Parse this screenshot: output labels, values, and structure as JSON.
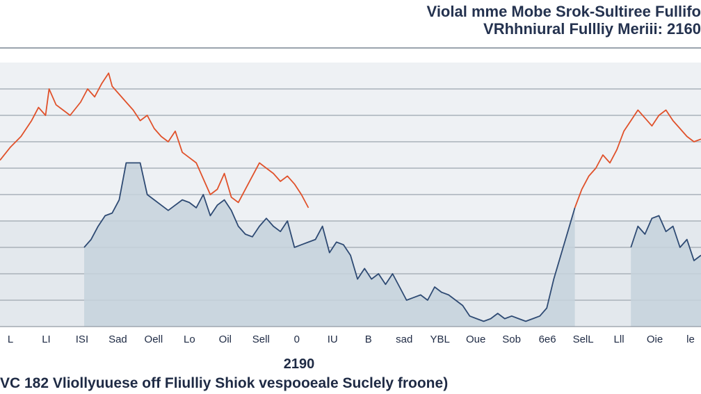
{
  "header": {
    "title": "Violal mme Mobe Srok-Sultiree Fullifo",
    "subtitle": "VRhhniural Fullliy Meriii: 2160"
  },
  "chart_data": {
    "type": "line",
    "title": "Violal mme Mobe Srok-Sultiree Fullifo",
    "subtitle": "VRhhniural Fullliy Meriii: 2160",
    "xlabel": "2190",
    "caption": "VC 182 Vliollyuuese off Fliulliy Shiok vespooeale Suclely froone)",
    "ylim": [
      0,
      100
    ],
    "grid": true,
    "legend": "none",
    "categories": [
      "L",
      "LI",
      "ISI",
      "Sad",
      "Oell",
      "Lo",
      "Oil",
      "Sell",
      "0",
      "IU",
      "B",
      "sad",
      "YBL",
      "Oue",
      "Sob",
      "6e6",
      "SelL",
      "Lll",
      "Oie",
      "le"
    ],
    "series": [
      {
        "color": "#e0512a",
        "segments": [
          [
            [
              0,
              63
            ],
            [
              1.5,
              68
            ],
            [
              3,
              72
            ],
            [
              4.5,
              78
            ],
            [
              5.5,
              83
            ],
            [
              6.5,
              80
            ],
            [
              7,
              90
            ],
            [
              8,
              84
            ],
            [
              9,
              82
            ],
            [
              10,
              80
            ],
            [
              11.5,
              85
            ],
            [
              12.5,
              90
            ],
            [
              13.5,
              87
            ],
            [
              14.5,
              92
            ],
            [
              15.5,
              96
            ],
            [
              16,
              91
            ],
            [
              17,
              88
            ],
            [
              18,
              85
            ],
            [
              19,
              82
            ],
            [
              20,
              78
            ],
            [
              21,
              80
            ],
            [
              22,
              75
            ],
            [
              23,
              72
            ],
            [
              24,
              70
            ],
            [
              25,
              74
            ],
            [
              26,
              66
            ],
            [
              27,
              64
            ],
            [
              28,
              62
            ],
            [
              29,
              56
            ],
            [
              30,
              50
            ],
            [
              31,
              52
            ],
            [
              32,
              58
            ],
            [
              33,
              49
            ],
            [
              34,
              47
            ],
            [
              35,
              52
            ],
            [
              36,
              57
            ],
            [
              37,
              62
            ],
            [
              38,
              60
            ],
            [
              39,
              58
            ],
            [
              40,
              55
            ],
            [
              41,
              57
            ],
            [
              42,
              54
            ],
            [
              43,
              50
            ],
            [
              44,
              45
            ]
          ],
          [
            [
              82,
              45
            ],
            [
              83,
              52
            ],
            [
              84,
              57
            ],
            [
              85,
              60
            ],
            [
              86,
              65
            ],
            [
              87,
              62
            ],
            [
              88,
              67
            ],
            [
              89,
              74
            ],
            [
              90,
              78
            ],
            [
              91,
              82
            ],
            [
              92,
              79
            ],
            [
              93,
              76
            ],
            [
              94,
              80
            ],
            [
              95,
              82
            ],
            [
              96,
              78
            ],
            [
              97,
              75
            ],
            [
              98,
              72
            ],
            [
              99,
              70
            ],
            [
              100,
              71
            ]
          ]
        ]
      },
      {
        "color": "#2e4a73",
        "fill": "#c6d2dc",
        "segments": [
          [
            [
              12,
              30
            ],
            [
              13,
              33
            ],
            [
              14,
              38
            ],
            [
              15,
              42
            ],
            [
              16,
              43
            ],
            [
              17,
              48
            ],
            [
              18,
              62
            ],
            [
              19,
              62
            ],
            [
              20,
              62
            ],
            [
              21,
              50
            ],
            [
              22,
              48
            ],
            [
              23,
              46
            ],
            [
              24,
              44
            ],
            [
              25,
              46
            ],
            [
              26,
              48
            ],
            [
              27,
              47
            ],
            [
              28,
              45
            ],
            [
              29,
              50
            ],
            [
              30,
              42
            ],
            [
              31,
              46
            ],
            [
              32,
              48
            ],
            [
              33,
              44
            ],
            [
              34,
              38
            ],
            [
              35,
              35
            ],
            [
              36,
              34
            ],
            [
              37,
              38
            ],
            [
              38,
              41
            ],
            [
              39,
              38
            ],
            [
              40,
              36
            ],
            [
              41,
              40
            ],
            [
              42,
              30
            ],
            [
              43,
              31
            ],
            [
              44,
              32
            ],
            [
              45,
              33
            ],
            [
              46,
              38
            ],
            [
              47,
              28
            ],
            [
              48,
              32
            ],
            [
              49,
              31
            ],
            [
              50,
              27
            ],
            [
              51,
              18
            ],
            [
              52,
              22
            ],
            [
              53,
              18
            ],
            [
              54,
              20
            ],
            [
              55,
              16
            ],
            [
              56,
              20
            ],
            [
              57,
              15
            ],
            [
              58,
              10
            ],
            [
              59,
              11
            ],
            [
              60,
              12
            ],
            [
              61,
              10
            ],
            [
              62,
              15
            ],
            [
              63,
              13
            ],
            [
              64,
              12
            ],
            [
              65,
              10
            ],
            [
              66,
              8
            ],
            [
              67,
              4
            ],
            [
              68,
              3
            ],
            [
              69,
              2
            ],
            [
              70,
              3
            ],
            [
              71,
              5
            ],
            [
              72,
              3
            ],
            [
              73,
              4
            ],
            [
              74,
              3
            ],
            [
              75,
              2
            ],
            [
              76,
              3
            ],
            [
              77,
              4
            ],
            [
              78,
              7
            ],
            [
              79,
              18
            ],
            [
              80,
              27
            ],
            [
              81,
              36
            ],
            [
              82,
              45
            ]
          ],
          [
            [
              90,
              30
            ],
            [
              91,
              38
            ],
            [
              92,
              35
            ],
            [
              93,
              41
            ],
            [
              94,
              42
            ],
            [
              95,
              36
            ],
            [
              96,
              38
            ],
            [
              97,
              30
            ],
            [
              98,
              33
            ],
            [
              99,
              25
            ],
            [
              100,
              27
            ]
          ]
        ]
      }
    ]
  }
}
